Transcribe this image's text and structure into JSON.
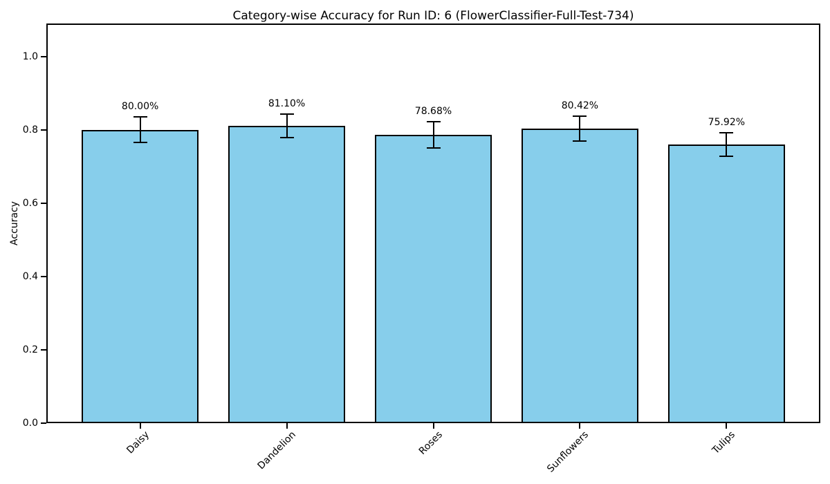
{
  "chart_data": {
    "type": "bar",
    "title": "Category-wise Accuracy for Run ID: 6 (FlowerClassifier-Full-Test-734)",
    "xlabel": "",
    "ylabel": "Accuracy",
    "categories": [
      "Daisy",
      "Dandelion",
      "Roses",
      "Sunflowers",
      "Tulips"
    ],
    "values": [
      0.8,
      0.811,
      0.7868,
      0.8042,
      0.7592
    ],
    "errors": [
      0.035,
      0.032,
      0.036,
      0.034,
      0.032
    ],
    "bar_labels": [
      "80.00%",
      "81.10%",
      "78.68%",
      "80.42%",
      "75.92%"
    ],
    "ytick_labels": [
      "0.0",
      "0.2",
      "0.4",
      "0.6",
      "0.8",
      "1.0"
    ],
    "ytick_values": [
      0.0,
      0.2,
      0.4,
      0.6,
      0.8,
      1.0
    ],
    "ylim": [
      0,
      1.09
    ],
    "xtick_rotation": 45,
    "bar_width_ratio": 0.8,
    "grid": false,
    "legend": "none",
    "colors": {
      "bar_fill": "#87CEEB",
      "bar_edge": "#000000",
      "error_bar": "#000000",
      "text": "#000000",
      "background": "#FFFFFF"
    }
  }
}
